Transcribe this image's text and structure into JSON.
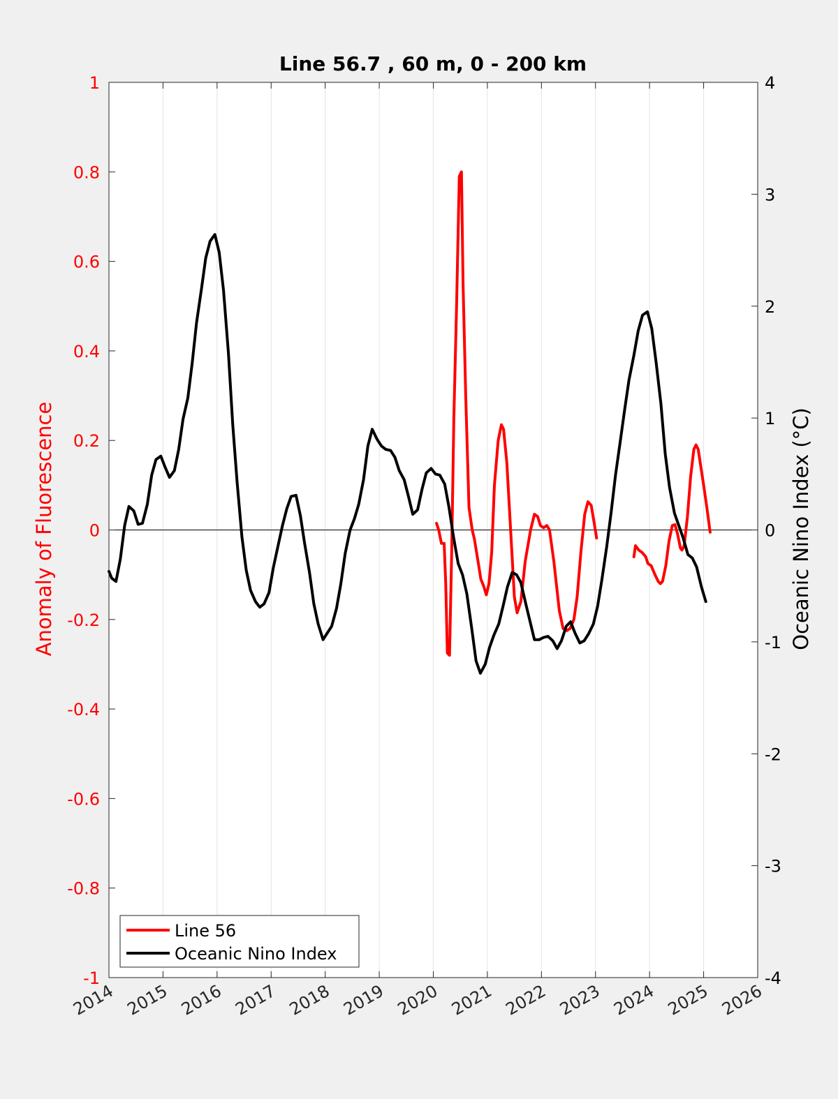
{
  "chart_data": {
    "type": "line",
    "title": "Line 56.7 , 60 m, 0 - 200 km",
    "xlim": [
      2014,
      2026
    ],
    "x_ticks": [
      "2014",
      "2015",
      "2016",
      "2017",
      "2018",
      "2019",
      "2020",
      "2021",
      "2022",
      "2023",
      "2024",
      "2025",
      "2026"
    ],
    "y_left": {
      "label": "Anomaly of Fluorescence",
      "range": [
        -1,
        1
      ],
      "ticks": [
        "-1",
        "-0.8",
        "-0.6",
        "-0.4",
        "-0.2",
        "0",
        "0.2",
        "0.4",
        "0.6",
        "0.8",
        "1"
      ],
      "color": "#ff0000"
    },
    "y_right": {
      "label": "Oceanic Nino Index (°C)",
      "range": [
        -4,
        4
      ],
      "ticks": [
        "-4",
        "-3",
        "-2",
        "-1",
        "0",
        "1",
        "2",
        "3",
        "4"
      ],
      "color": "#000000"
    },
    "grid": "vertical",
    "legend_placement": "bottom-left",
    "series": [
      {
        "name": "Line 56",
        "axis": "left",
        "color": "#ff0000",
        "segments": [
          [
            [
              2020.06,
              0.015
            ],
            [
              2020.1,
              0.0
            ],
            [
              2020.15,
              -0.03
            ],
            [
              2020.2,
              -0.03
            ],
            [
              2020.23,
              -0.12
            ],
            [
              2020.26,
              -0.275
            ],
            [
              2020.3,
              -0.28
            ],
            [
              2020.34,
              -0.05
            ],
            [
              2020.38,
              0.25
            ],
            [
              2020.43,
              0.5
            ],
            [
              2020.48,
              0.79
            ],
            [
              2020.52,
              0.8
            ],
            [
              2020.55,
              0.55
            ],
            [
              2020.6,
              0.3
            ],
            [
              2020.66,
              0.05
            ],
            [
              2020.72,
              0.0
            ],
            [
              2020.76,
              -0.02
            ],
            [
              2020.82,
              -0.065
            ],
            [
              2020.88,
              -0.11
            ],
            [
              2020.93,
              -0.125
            ],
            [
              2020.98,
              -0.145
            ],
            [
              2021.03,
              -0.12
            ],
            [
              2021.08,
              -0.05
            ],
            [
              2021.13,
              0.1
            ],
            [
              2021.2,
              0.2
            ],
            [
              2021.26,
              0.235
            ],
            [
              2021.3,
              0.225
            ],
            [
              2021.36,
              0.15
            ],
            [
              2021.43,
              0.0
            ],
            [
              2021.5,
              -0.15
            ],
            [
              2021.55,
              -0.185
            ],
            [
              2021.62,
              -0.16
            ],
            [
              2021.7,
              -0.07
            ],
            [
              2021.8,
              0.0
            ],
            [
              2021.87,
              0.035
            ],
            [
              2021.93,
              0.03
            ],
            [
              2021.98,
              0.01
            ],
            [
              2022.04,
              0.005
            ],
            [
              2022.1,
              0.01
            ],
            [
              2022.15,
              0.0
            ],
            [
              2022.23,
              -0.07
            ],
            [
              2022.33,
              -0.18
            ],
            [
              2022.4,
              -0.22
            ],
            [
              2022.47,
              -0.225
            ],
            [
              2022.53,
              -0.22
            ],
            [
              2022.6,
              -0.2
            ],
            [
              2022.66,
              -0.15
            ],
            [
              2022.73,
              -0.05
            ],
            [
              2022.8,
              0.035
            ],
            [
              2022.86,
              0.063
            ],
            [
              2022.92,
              0.055
            ],
            [
              2022.97,
              0.02
            ],
            [
              2023.02,
              -0.018
            ]
          ],
          [
            [
              2023.71,
              -0.06
            ],
            [
              2023.74,
              -0.035
            ],
            [
              2023.8,
              -0.045
            ],
            [
              2023.86,
              -0.05
            ],
            [
              2023.93,
              -0.06
            ],
            [
              2023.97,
              -0.075
            ],
            [
              2024.03,
              -0.08
            ],
            [
              2024.1,
              -0.1
            ],
            [
              2024.16,
              -0.115
            ],
            [
              2024.2,
              -0.12
            ],
            [
              2024.24,
              -0.115
            ],
            [
              2024.3,
              -0.08
            ],
            [
              2024.36,
              -0.025
            ],
            [
              2024.42,
              0.01
            ],
            [
              2024.47,
              0.012
            ],
            [
              2024.52,
              -0.01
            ],
            [
              2024.57,
              -0.04
            ],
            [
              2024.6,
              -0.045
            ],
            [
              2024.64,
              -0.035
            ],
            [
              2024.7,
              0.03
            ],
            [
              2024.76,
              0.12
            ],
            [
              2024.82,
              0.18
            ],
            [
              2024.86,
              0.19
            ],
            [
              2024.9,
              0.18
            ],
            [
              2024.95,
              0.14
            ],
            [
              2025.0,
              0.1
            ],
            [
              2025.06,
              0.05
            ],
            [
              2025.12,
              -0.005
            ]
          ]
        ]
      },
      {
        "name": "Oceanic Nino Index",
        "axis": "right",
        "color": "#000000",
        "points": [
          [
            2014.0,
            -0.37
          ],
          [
            2014.05,
            -0.43
          ],
          [
            2014.13,
            -0.46
          ],
          [
            2014.21,
            -0.26
          ],
          [
            2014.29,
            0.04
          ],
          [
            2014.37,
            0.21
          ],
          [
            2014.46,
            0.17
          ],
          [
            2014.54,
            0.05
          ],
          [
            2014.62,
            0.06
          ],
          [
            2014.71,
            0.23
          ],
          [
            2014.79,
            0.49
          ],
          [
            2014.87,
            0.63
          ],
          [
            2014.96,
            0.66
          ],
          [
            2015.04,
            0.56
          ],
          [
            2015.12,
            0.47
          ],
          [
            2015.21,
            0.53
          ],
          [
            2015.29,
            0.72
          ],
          [
            2015.37,
            0.99
          ],
          [
            2015.46,
            1.18
          ],
          [
            2015.54,
            1.49
          ],
          [
            2015.62,
            1.85
          ],
          [
            2015.71,
            2.15
          ],
          [
            2015.79,
            2.43
          ],
          [
            2015.87,
            2.58
          ],
          [
            2015.96,
            2.64
          ],
          [
            2016.04,
            2.48
          ],
          [
            2016.12,
            2.14
          ],
          [
            2016.21,
            1.58
          ],
          [
            2016.29,
            0.94
          ],
          [
            2016.37,
            0.43
          ],
          [
            2016.46,
            -0.06
          ],
          [
            2016.54,
            -0.36
          ],
          [
            2016.62,
            -0.54
          ],
          [
            2016.71,
            -0.64
          ],
          [
            2016.79,
            -0.69
          ],
          [
            2016.87,
            -0.66
          ],
          [
            2016.96,
            -0.56
          ],
          [
            2017.04,
            -0.34
          ],
          [
            2017.12,
            -0.16
          ],
          [
            2017.21,
            0.04
          ],
          [
            2017.29,
            0.19
          ],
          [
            2017.37,
            0.3
          ],
          [
            2017.46,
            0.31
          ],
          [
            2017.54,
            0.13
          ],
          [
            2017.62,
            -0.12
          ],
          [
            2017.71,
            -0.38
          ],
          [
            2017.79,
            -0.66
          ],
          [
            2017.87,
            -0.84
          ],
          [
            2017.96,
            -0.98
          ],
          [
            2018.04,
            -0.92
          ],
          [
            2018.12,
            -0.86
          ],
          [
            2018.21,
            -0.7
          ],
          [
            2018.29,
            -0.48
          ],
          [
            2018.37,
            -0.21
          ],
          [
            2018.46,
            0.0
          ],
          [
            2018.54,
            0.1
          ],
          [
            2018.62,
            0.23
          ],
          [
            2018.71,
            0.45
          ],
          [
            2018.79,
            0.75
          ],
          [
            2018.87,
            0.9
          ],
          [
            2018.96,
            0.81
          ],
          [
            2019.04,
            0.75
          ],
          [
            2019.12,
            0.72
          ],
          [
            2019.21,
            0.71
          ],
          [
            2019.29,
            0.65
          ],
          [
            2019.37,
            0.53
          ],
          [
            2019.46,
            0.45
          ],
          [
            2019.54,
            0.3
          ],
          [
            2019.62,
            0.14
          ],
          [
            2019.71,
            0.18
          ],
          [
            2019.79,
            0.36
          ],
          [
            2019.87,
            0.51
          ],
          [
            2019.96,
            0.55
          ],
          [
            2020.04,
            0.5
          ],
          [
            2020.12,
            0.49
          ],
          [
            2020.21,
            0.41
          ],
          [
            2020.29,
            0.2
          ],
          [
            2020.37,
            -0.05
          ],
          [
            2020.46,
            -0.3
          ],
          [
            2020.54,
            -0.4
          ],
          [
            2020.62,
            -0.57
          ],
          [
            2020.71,
            -0.88
          ],
          [
            2020.79,
            -1.17
          ],
          [
            2020.87,
            -1.28
          ],
          [
            2020.96,
            -1.2
          ],
          [
            2021.04,
            -1.05
          ],
          [
            2021.12,
            -0.94
          ],
          [
            2021.21,
            -0.84
          ],
          [
            2021.29,
            -0.68
          ],
          [
            2021.37,
            -0.51
          ],
          [
            2021.46,
            -0.38
          ],
          [
            2021.54,
            -0.4
          ],
          [
            2021.62,
            -0.47
          ],
          [
            2021.71,
            -0.66
          ],
          [
            2021.79,
            -0.82
          ],
          [
            2021.87,
            -0.98
          ],
          [
            2021.96,
            -0.98
          ],
          [
            2022.04,
            -0.96
          ],
          [
            2022.12,
            -0.95
          ],
          [
            2022.21,
            -0.99
          ],
          [
            2022.29,
            -1.06
          ],
          [
            2022.37,
            -0.99
          ],
          [
            2022.46,
            -0.86
          ],
          [
            2022.54,
            -0.82
          ],
          [
            2022.62,
            -0.92
          ],
          [
            2022.71,
            -1.01
          ],
          [
            2022.79,
            -0.99
          ],
          [
            2022.87,
            -0.93
          ],
          [
            2022.96,
            -0.84
          ],
          [
            2023.04,
            -0.68
          ],
          [
            2023.12,
            -0.44
          ],
          [
            2023.21,
            -0.14
          ],
          [
            2023.29,
            0.16
          ],
          [
            2023.37,
            0.49
          ],
          [
            2023.46,
            0.8
          ],
          [
            2023.54,
            1.08
          ],
          [
            2023.62,
            1.34
          ],
          [
            2023.71,
            1.56
          ],
          [
            2023.79,
            1.78
          ],
          [
            2023.87,
            1.92
          ],
          [
            2023.96,
            1.95
          ],
          [
            2024.04,
            1.8
          ],
          [
            2024.12,
            1.5
          ],
          [
            2024.21,
            1.13
          ],
          [
            2024.29,
            0.68
          ],
          [
            2024.37,
            0.38
          ],
          [
            2024.46,
            0.15
          ],
          [
            2024.54,
            0.04
          ],
          [
            2024.62,
            -0.07
          ],
          [
            2024.71,
            -0.22
          ],
          [
            2024.79,
            -0.25
          ],
          [
            2024.87,
            -0.33
          ],
          [
            2024.96,
            -0.51
          ],
          [
            2025.04,
            -0.64
          ]
        ]
      }
    ]
  }
}
